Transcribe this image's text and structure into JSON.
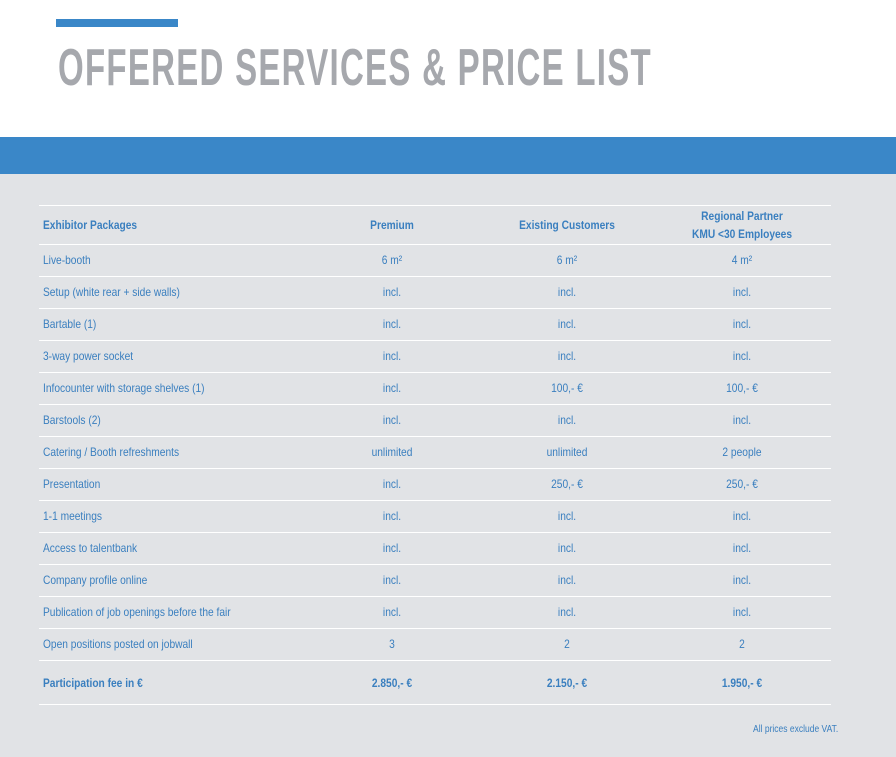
{
  "header": {
    "title": "OFFERED SERVICES & PRICE LIST"
  },
  "table": {
    "headers": [
      [
        "Exhibitor Packages"
      ],
      [
        "Premium"
      ],
      [
        "Existing Customers"
      ],
      [
        "Regional Partner",
        "KMU <30 Employees"
      ]
    ],
    "rows": [
      [
        "Live-booth",
        "6 m²",
        "6 m²",
        "4 m²"
      ],
      [
        "Setup (white rear + side walls)",
        "incl.",
        "incl.",
        "incl."
      ],
      [
        "Bartable (1)",
        "incl.",
        "incl.",
        "incl."
      ],
      [
        "3-way power socket",
        "incl.",
        "incl.",
        "incl."
      ],
      [
        "Infocounter with storage shelves (1)",
        "incl.",
        "100,- €",
        "100,- €"
      ],
      [
        "Barstools (2)",
        "incl.",
        "incl.",
        "incl."
      ],
      [
        "Catering / Booth refreshments",
        "unlimited",
        "unlimited",
        "2 people"
      ],
      [
        "Presentation",
        "incl.",
        "250,- €",
        "250,- €"
      ],
      [
        "1-1 meetings",
        "incl.",
        "incl.",
        "incl."
      ],
      [
        "Access to talentbank",
        "incl.",
        "incl.",
        "incl."
      ],
      [
        "Company profile online",
        "incl.",
        "incl.",
        "incl."
      ],
      [
        "Publication of job openings before the fair",
        "incl.",
        "incl.",
        "incl."
      ],
      [
        "Open positions posted on jobwall",
        "3",
        "2",
        "2"
      ]
    ],
    "footer": [
      "Participation fee in €",
      "2.850,- €",
      "2.150,- €",
      "1.950,- €"
    ]
  },
  "note": "All prices exclude VAT."
}
